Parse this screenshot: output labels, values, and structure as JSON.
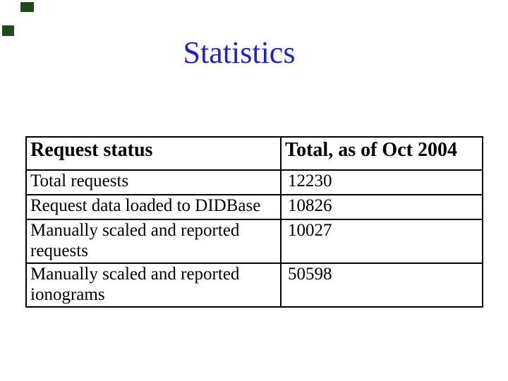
{
  "slide": {
    "title": "Statistics",
    "title_color": "#2121c8",
    "background_color": "#ffffff",
    "corner_mark_color": "#1e4a1e"
  },
  "table": {
    "border_color": "#000000",
    "columns": {
      "status": "Request status",
      "total": "Total, as of Oct 2004"
    },
    "rows": [
      {
        "label": "Total requests",
        "value": "12230"
      },
      {
        "label": "Request data loaded to DIDBase",
        "value": "10826"
      },
      {
        "label": "Manually scaled and reported requests",
        "value": "10027"
      },
      {
        "label": "Manually scaled and reported ionograms",
        "value": "50598"
      }
    ]
  }
}
